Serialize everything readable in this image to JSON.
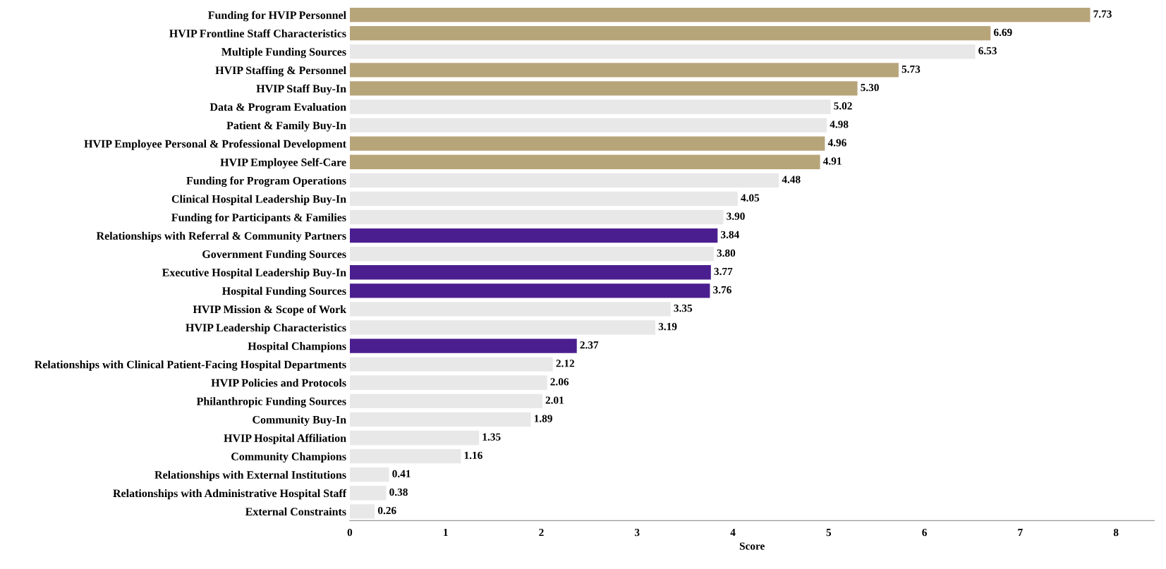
{
  "chart_data": {
    "type": "bar",
    "orientation": "horizontal",
    "xlabel": "Score",
    "categories": [
      "Funding for HVIP Personnel",
      "HVIP Frontline Staff Characteristics",
      "Multiple Funding Sources",
      "HVIP Staffing & Personnel",
      "HVIP Staff Buy-In",
      "Data & Program Evaluation",
      "Patient & Family Buy-In",
      "HVIP Employee Personal & Professional Development",
      "HVIP Employee Self-Care",
      "Funding for Program Operations",
      "Clinical Hospital Leadership Buy-In",
      "Funding for Participants & Families",
      "Relationships with Referral & Community Partners",
      "Government Funding Sources",
      "Executive Hospital Leadership Buy-In",
      "Hospital Funding Sources",
      "HVIP Mission & Scope of Work",
      "HVIP Leadership Characteristics",
      "Hospital Champions",
      "Relationships with Clinical Patient-Facing Hospital Departments",
      "HVIP Policies and Protocols",
      "Philanthropic Funding Sources",
      "Community Buy-In",
      "HVIP Hospital Affiliation",
      "Community Champions",
      "Relationships with External Institutions",
      "Relationships with Administrative Hospital Staff",
      "External Constraints"
    ],
    "values": [
      7.73,
      6.69,
      6.53,
      5.73,
      5.3,
      5.02,
      4.98,
      4.96,
      4.91,
      4.48,
      4.05,
      3.9,
      3.84,
      3.8,
      3.77,
      3.76,
      3.35,
      3.19,
      2.37,
      2.12,
      2.06,
      2.01,
      1.89,
      1.35,
      1.16,
      0.41,
      0.38,
      0.26
    ],
    "value_labels": [
      "7.73",
      "6.69",
      "6.53",
      "5.73",
      "5.30",
      "5.02",
      "4.98",
      "4.96",
      "4.91",
      "4.48",
      "4.05",
      "3.90",
      "3.84",
      "3.80",
      "3.77",
      "3.76",
      "3.35",
      "3.19",
      "2.37",
      "2.12",
      "2.06",
      "2.01",
      "1.89",
      "1.35",
      "1.16",
      "0.41",
      "0.38",
      "0.26"
    ],
    "colors": [
      "#b7a57a",
      "#b7a57a",
      "#e8e8e8",
      "#b7a57a",
      "#b7a57a",
      "#e8e8e8",
      "#e8e8e8",
      "#b7a57a",
      "#b7a57a",
      "#e8e8e8",
      "#e8e8e8",
      "#e8e8e8",
      "#4b1e8f",
      "#e8e8e8",
      "#4b1e8f",
      "#4b1e8f",
      "#e8e8e8",
      "#e8e8e8",
      "#4b1e8f",
      "#e8e8e8",
      "#e8e8e8",
      "#e8e8e8",
      "#e8e8e8",
      "#e8e8e8",
      "#e8e8e8",
      "#e8e8e8",
      "#e8e8e8",
      "#e8e8e8"
    ],
    "xlim": [
      0,
      8.4
    ],
    "xticks": [
      0,
      1,
      2,
      3,
      4,
      5,
      6,
      7,
      8
    ],
    "grid": false,
    "legend": false
  }
}
